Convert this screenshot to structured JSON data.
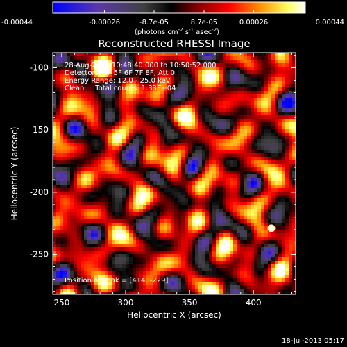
{
  "chart_data": {
    "type": "heatmap",
    "title": "Reconstructed RHESSI Image",
    "xlabel": "Heliocentric X (arcsec)",
    "ylabel": "Heliocentric Y (arcsec)",
    "xlim": [
      243,
      433
    ],
    "ylim": [
      -282,
      -88
    ],
    "xticks": [
      250,
      300,
      350,
      400
    ],
    "yticks": [
      -100,
      -150,
      -200,
      -250
    ],
    "colorbar": {
      "ticks": [
        "-0.00044",
        "-0.00026",
        "-8.7e-05",
        "8.7e-05",
        "0.00026",
        "0.00044"
      ],
      "tick_values": [
        -0.00044,
        -0.00026,
        -8.7e-05,
        8.7e-05,
        0.00026,
        0.00044
      ],
      "range": [
        -0.00044,
        0.00044
      ],
      "unit_main": "(photons cm",
      "unit_exp1": "-2",
      "unit_mid1": " s",
      "unit_exp2": "-1",
      "unit_mid2": " asec",
      "unit_exp3": "-2",
      "unit_end": ")"
    },
    "annotations": [
      "28-Aug-2006 10:48:40.000 to 10:50:52.000",
      "Detectors: 4F 5F 6F 7F 8F, Att 0",
      "Energy Range: 12.0 - 25.0 keV",
      "Clean     Total counts: 1.33E+04"
    ],
    "peak_label": "Position of Peak = [414, -229]",
    "peak": [
      414,
      -229
    ],
    "colors": {
      "scale": [
        "#0000ff",
        "#5a3aa8",
        "#404040",
        "#000000",
        "#8a0000",
        "#ff0000",
        "#ff9000",
        "#ffff60",
        "#ffffff"
      ]
    }
  },
  "footer": {
    "timestamp": "18-Jul-2013 05:17"
  }
}
